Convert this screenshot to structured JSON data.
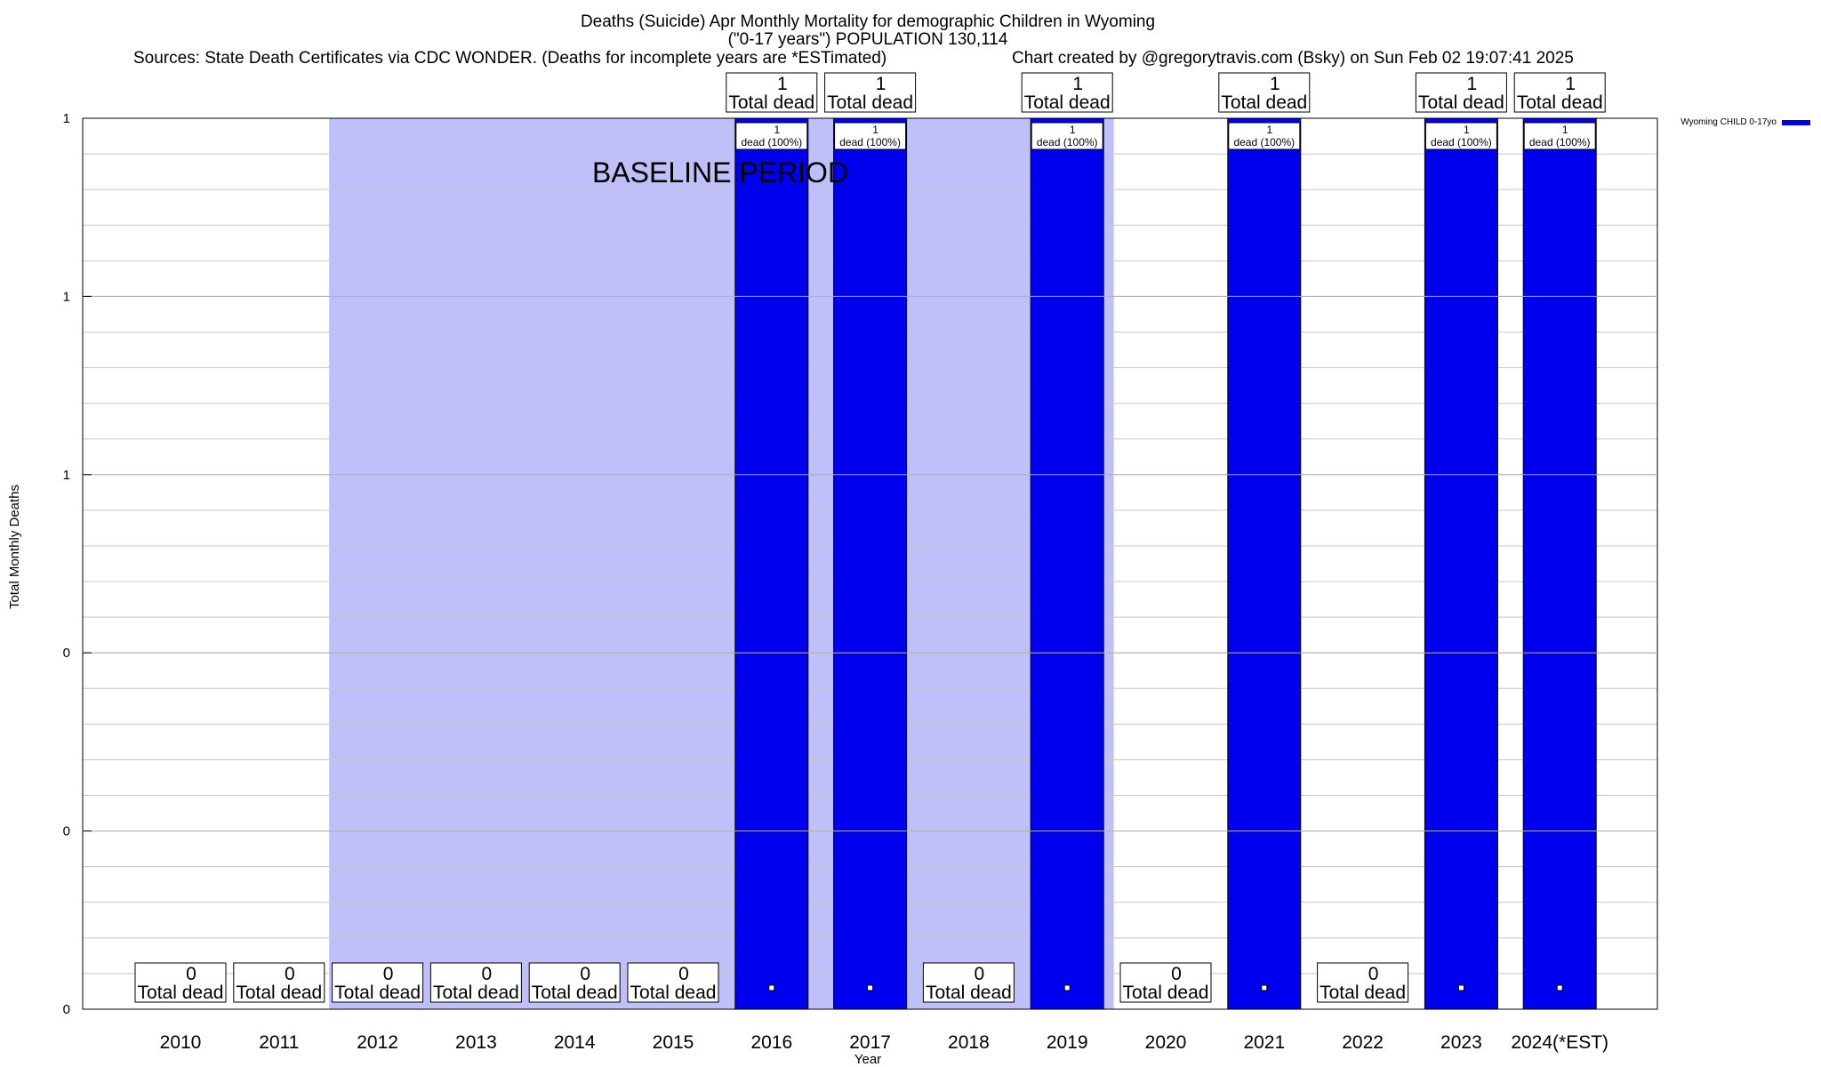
{
  "chart_data": {
    "type": "bar",
    "title": "Deaths (Suicide) Apr Monthly Mortality for demographic Children in Wyoming",
    "subtitle": "(\"0-17 years\") POPULATION 130,114",
    "sources": "Sources: State Death Certificates via CDC WONDER. (Deaths for incomplete years are *ESTimated)",
    "credit": "Chart created by @gregorytravis.com (Bsky) on Sun Feb 02 19:07:41 2025",
    "xlabel": "Year",
    "ylabel": "Total Monthly Deaths",
    "ylim": [
      0,
      1
    ],
    "y_tick_labels": [
      "0",
      "0",
      "0",
      "1",
      "1",
      "1"
    ],
    "categories": [
      "2010",
      "2011",
      "2012",
      "2013",
      "2014",
      "2015",
      "2016",
      "2017",
      "2018",
      "2019",
      "2020",
      "2021",
      "2022",
      "2023",
      "2024(*EST)"
    ],
    "series": [
      {
        "name": "Wyoming CHILD 0-17yo",
        "color": "#0000ee",
        "values": [
          0,
          0,
          0,
          0,
          0,
          0,
          1,
          1,
          0,
          1,
          0,
          1,
          0,
          1,
          1
        ]
      }
    ],
    "total_labels": [
      {
        "num": "0",
        "text": "Total dead"
      },
      {
        "num": "0",
        "text": "Total dead"
      },
      {
        "num": "0",
        "text": "Total dead"
      },
      {
        "num": "0",
        "text": "Total dead"
      },
      {
        "num": "0",
        "text": "Total dead"
      },
      {
        "num": "0",
        "text": "Total dead"
      },
      {
        "num": "1",
        "text": "Total dead"
      },
      {
        "num": "1",
        "text": "Total dead"
      },
      {
        "num": "0",
        "text": "Total dead"
      },
      {
        "num": "1",
        "text": "Total dead"
      },
      {
        "num": "0",
        "text": "Total dead"
      },
      {
        "num": "1",
        "text": "Total dead"
      },
      {
        "num": "0",
        "text": "Total dead"
      },
      {
        "num": "1",
        "text": "Total dead"
      },
      {
        "num": "1",
        "text": "Total dead"
      }
    ],
    "bar_labels": [
      null,
      null,
      null,
      null,
      null,
      null,
      {
        "num": "1",
        "text": "dead (100%)"
      },
      {
        "num": "1",
        "text": "dead (100%)"
      },
      null,
      {
        "num": "1",
        "text": "dead (100%)"
      },
      null,
      {
        "num": "1",
        "text": "dead (100%)"
      },
      null,
      {
        "num": "1",
        "text": "dead (100%)"
      },
      {
        "num": "1",
        "text": "dead (100%)"
      }
    ],
    "baseline": {
      "label": "BASELINE PERIOD",
      "from": "2012",
      "to": "2019",
      "color": "#bfbffa"
    },
    "grid": true,
    "legend_position": "top-right"
  }
}
